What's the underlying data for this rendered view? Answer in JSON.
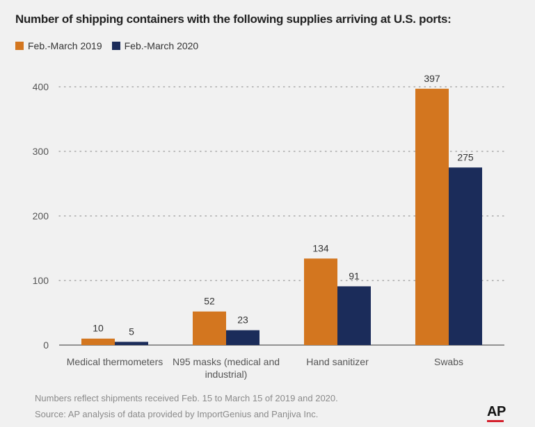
{
  "header": {
    "title": "Number of shipping containers with the following supplies arriving at U.S. ports:"
  },
  "colors": {
    "series_2019": "#d3761f",
    "series_2020": "#1b2c5a",
    "grid": "#9a9a9a",
    "text": "#555555"
  },
  "chart_data": {
    "type": "bar",
    "title": "Number of shipping containers with the following supplies arriving at U.S. ports:",
    "categories": [
      "Medical thermometers",
      "N95 masks (medical and industrial)",
      "Hand sanitizer",
      "Swabs"
    ],
    "category_lines": [
      [
        "Medical thermometers"
      ],
      [
        "N95 masks (medical and",
        "industrial)"
      ],
      [
        "Hand sanitizer"
      ],
      [
        "Swabs"
      ]
    ],
    "series": [
      {
        "name": "Feb.-March 2019",
        "values": [
          10,
          52,
          134,
          397
        ]
      },
      {
        "name": "Feb.-March 2020",
        "values": [
          5,
          23,
          91,
          275
        ]
      }
    ],
    "yticks": [
      0,
      100,
      200,
      300,
      400
    ],
    "ylim": [
      0,
      400
    ],
    "xlabel": "",
    "ylabel": "",
    "grid": true,
    "legend_position": "top-left"
  },
  "footer": {
    "note": "Numbers reflect shipments received Feb. 15 to March 15 of 2019 and 2020.",
    "source": "Source: AP analysis of data provided by ImportGenius and Panjiva Inc.",
    "logo": "AP"
  }
}
